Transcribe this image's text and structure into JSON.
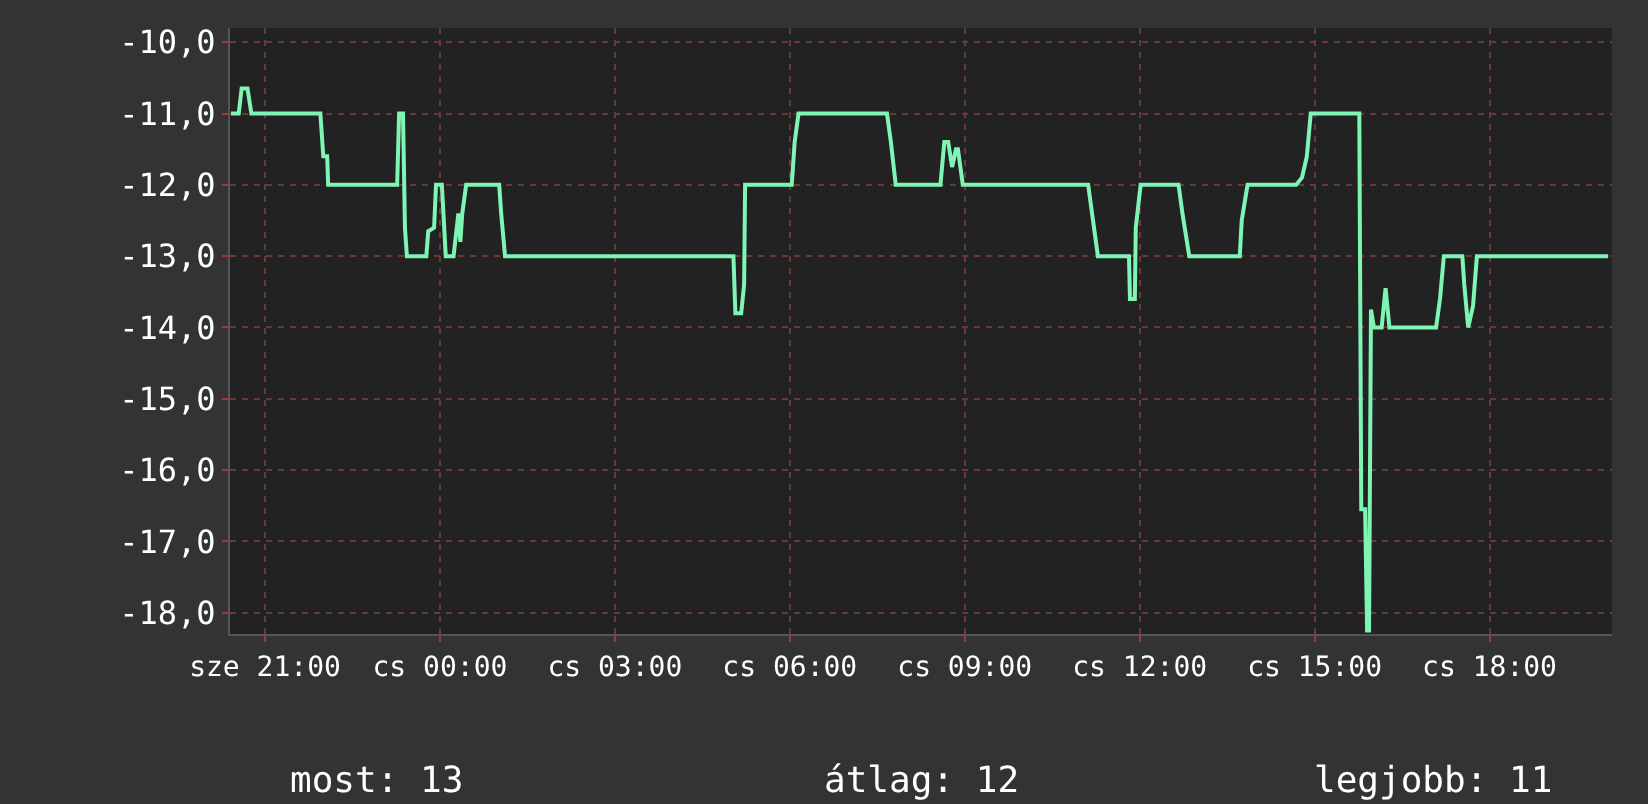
{
  "chart_data": {
    "type": "line",
    "x": [
      "--01-03T20:25",
      "--01-03T20:33",
      "--01-03T20:36",
      "--01-03T20:42",
      "--01-03T20:46",
      "--01-03T21:57",
      "--01-03T22:00",
      "--01-03T22:04",
      "--01-03T22:05",
      "--01-03T23:16",
      "--01-03T23:18",
      "--01-03T23:22",
      "--01-03T23:24",
      "--01-03T23:26",
      "--01-03T23:46",
      "--01-03T23:48",
      "--01-03T23:54",
      "--01-03T23:56",
      "--01-04T00:02",
      "--01-04T00:06",
      "--01-04T00:14",
      "--01-04T00:19",
      "--01-04T00:21",
      "--01-04T00:23",
      "--01-04T00:27",
      "--01-04T01:01",
      "--01-04T01:03",
      "--01-04T01:07",
      "--01-04T05:02",
      "--01-04T05:04",
      "--01-04T05:10",
      "--01-04T05:13",
      "--01-04T05:14",
      "--01-04T06:02",
      "--01-04T06:05",
      "--01-04T06:09",
      "--01-04T07:40",
      "--01-04T07:44",
      "--01-04T07:49",
      "--01-04T08:35",
      "--01-04T08:39",
      "--01-04T08:43",
      "--01-04T08:47",
      "--01-04T08:51",
      "--01-04T08:53",
      "--01-04T08:58",
      "--01-04T11:07",
      "--01-04T11:11",
      "--01-04T11:17",
      "--01-04T11:49",
      "--01-04T11:50",
      "--01-04T11:55",
      "--01-04T11:56",
      "--01-04T12:01",
      "--01-04T12:40",
      "--01-04T12:44",
      "--01-04T12:51",
      "--01-04T13:43",
      "--01-04T13:45",
      "--01-04T13:51",
      "--01-04T14:41",
      "--01-04T14:47",
      "--01-04T14:52",
      "--01-04T14:56",
      "--01-04T15:46",
      "--01-04T15:48",
      "--01-04T15:52",
      "--01-04T15:54",
      "--01-04T15:56",
      "--01-04T15:58",
      "--01-04T16:01",
      "--01-04T16:09",
      "--01-04T16:13",
      "--01-04T16:17",
      "--01-04T17:05",
      "--01-04T17:09",
      "--01-04T17:13",
      "--01-04T17:32",
      "--01-04T17:34",
      "--01-04T17:38",
      "--01-04T17:43",
      "--01-04T17:47",
      "--01-04T20:02"
    ],
    "series": [
      {
        "color": "#7ff5b5",
        "values": [
          -11,
          -11,
          -10.65,
          -10.65,
          -11,
          -11,
          -11.6,
          -11.6,
          -12,
          -12,
          -11,
          -11,
          -12.6,
          -13,
          -13,
          -12.65,
          -12.6,
          -12,
          -12,
          -13,
          -13,
          -12.4,
          -12.8,
          -12.4,
          -12,
          -12,
          -12.4,
          -13,
          -13,
          -13.8,
          -13.8,
          -13.4,
          -12,
          -12,
          -11.4,
          -11,
          -11,
          -11.4,
          -12,
          -12,
          -11.4,
          -11.4,
          -11.75,
          -11.5,
          -11.5,
          -12,
          -12,
          -12.4,
          -13,
          -13,
          -13.6,
          -13.6,
          -12.6,
          -12,
          -12,
          -12.4,
          -13,
          -13,
          -12.5,
          -12,
          -12,
          -11.9,
          -11.6,
          -11,
          -11,
          -16.55,
          -16.55,
          -18.25,
          -18.25,
          -13.75,
          -14,
          -14,
          -13.45,
          -14,
          -14,
          -13.6,
          -13,
          -13,
          -13.4,
          -14,
          -13.7,
          -13,
          -13
        ]
      }
    ],
    "xlim": [
      "--01-03T20:24",
      "--01-04T20:06"
    ],
    "xticks": [
      {
        "value": "--01-03T21:00",
        "label": "sze 21:00"
      },
      {
        "value": "--01-04T00:00",
        "label": "cs 00:00"
      },
      {
        "value": "--01-04T03:00",
        "label": "cs 03:00"
      },
      {
        "value": "--01-04T06:00",
        "label": "cs 06:00"
      },
      {
        "value": "--01-04T09:00",
        "label": "cs 09:00"
      },
      {
        "value": "--01-04T12:00",
        "label": "cs 12:00"
      },
      {
        "value": "--01-04T15:00",
        "label": "cs 15:00"
      },
      {
        "value": "--01-04T18:00",
        "label": "cs 18:00"
      }
    ],
    "ylim": [
      -18.3,
      -9.8
    ],
    "yticks": [
      {
        "value": -10,
        "label": "-10,0"
      },
      {
        "value": -11,
        "label": "-11,0"
      },
      {
        "value": -12,
        "label": "-12,0"
      },
      {
        "value": -13,
        "label": "-13,0"
      },
      {
        "value": -14,
        "label": "-14,0"
      },
      {
        "value": -15,
        "label": "-15,0"
      },
      {
        "value": -16,
        "label": "-16,0"
      },
      {
        "value": -17,
        "label": "-17,0"
      },
      {
        "value": -18,
        "label": "-18,0"
      }
    ],
    "grid": true,
    "marker": "none",
    "line_style": "solid",
    "annotations": [
      "most: 13",
      "átlag: 12",
      "legjobb: 11"
    ]
  }
}
